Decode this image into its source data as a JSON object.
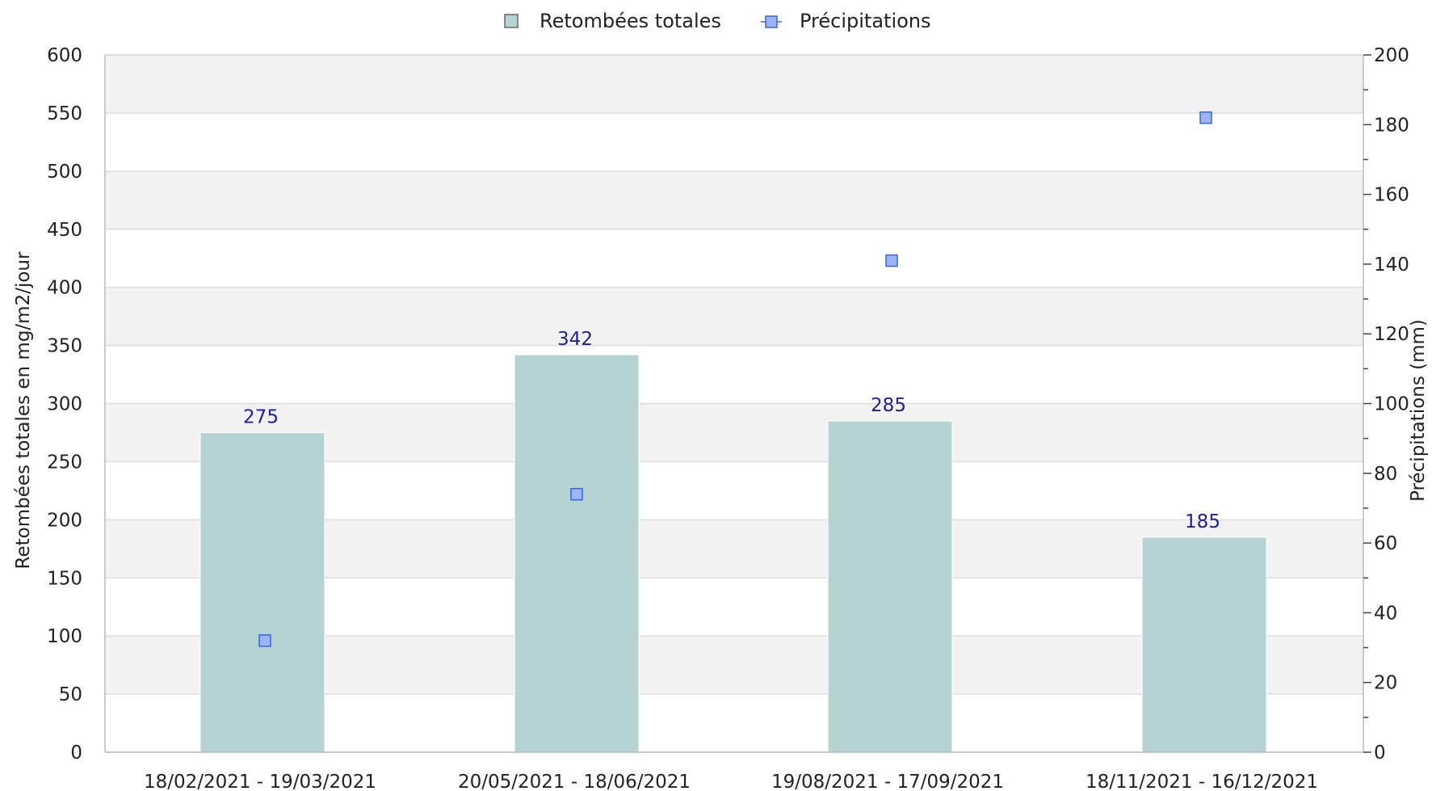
{
  "chart_data": {
    "type": "bar",
    "title": "",
    "categories": [
      "18/02/2021 - 19/03/2021",
      "20/05/2021 - 18/06/2021",
      "19/08/2021 - 17/09/2021",
      "18/11/2021 - 16/12/2021"
    ],
    "series": [
      {
        "name": "Retombées totales",
        "type": "bar",
        "axis": "left",
        "values": [
          275,
          342,
          285,
          185
        ],
        "color": "#b5d3d3",
        "labels": [
          "275",
          "342",
          "285",
          "185"
        ]
      },
      {
        "name": "Précipitations",
        "type": "scatter",
        "axis": "right",
        "values": [
          32,
          74,
          141,
          182
        ],
        "color": "#6b8ff0"
      }
    ],
    "ylabel": "Retombées totales en mg/m2/jour",
    "y2label": "Précipitations (mm)",
    "ylim": [
      0,
      600
    ],
    "y2lim": [
      0,
      200
    ],
    "yticks": [
      "0",
      "50",
      "100",
      "150",
      "200",
      "250",
      "300",
      "350",
      "400",
      "450",
      "500",
      "550",
      "600"
    ],
    "y2ticks": [
      "0",
      "20",
      "40",
      "60",
      "80",
      "100",
      "120",
      "140",
      "160",
      "180",
      "200"
    ],
    "grid": true,
    "legend_position": "top-center"
  }
}
